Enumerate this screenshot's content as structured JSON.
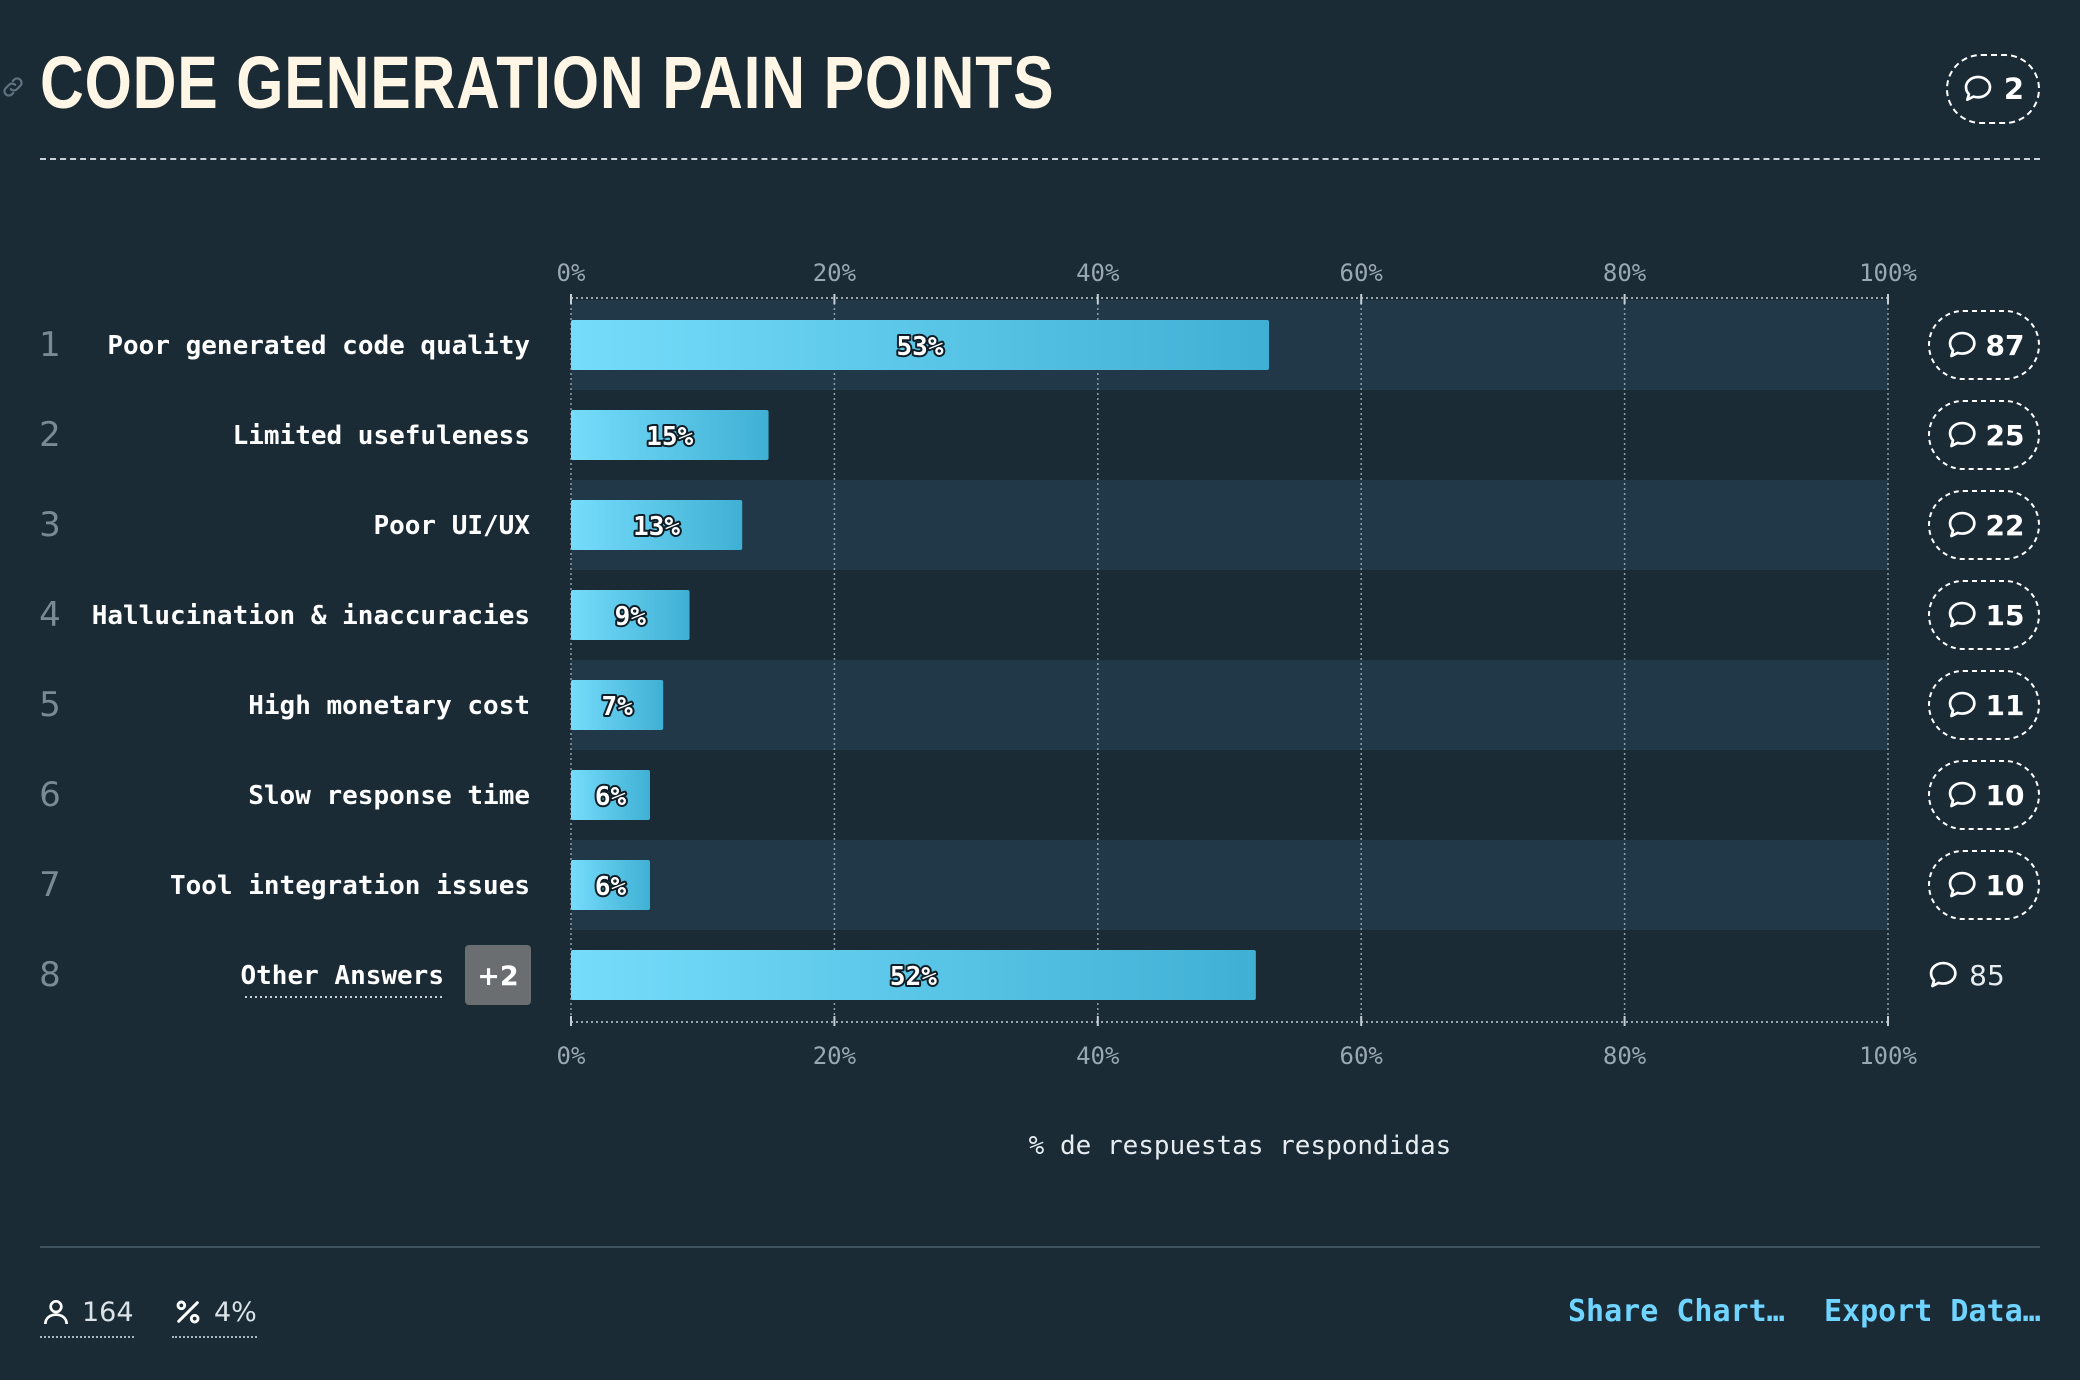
{
  "header": {
    "title": "CODE GENERATION PAIN POINTS",
    "comment_count": "2"
  },
  "chart_data": {
    "type": "bar",
    "orientation": "horizontal",
    "categories": [
      "Poor generated code quality",
      "Limited usefuleness",
      "Poor UI/UX",
      "Hallucination & inaccuracies",
      "High monetary cost",
      "Slow response time",
      "Tool integration issues",
      "Other Answers"
    ],
    "ranks": [
      "1",
      "2",
      "3",
      "4",
      "5",
      "6",
      "7",
      "8"
    ],
    "values": [
      53,
      15,
      13,
      9,
      7,
      6,
      6,
      52
    ],
    "value_labels": [
      "53%",
      "15%",
      "13%",
      "9%",
      "7%",
      "6%",
      "6%",
      "52%"
    ],
    "comment_counts": [
      "87",
      "25",
      "22",
      "15",
      "11",
      "10",
      "10",
      "85"
    ],
    "other_badge": "+2",
    "x_ticks": [
      "0%",
      "20%",
      "40%",
      "60%",
      "80%",
      "100%"
    ],
    "xlim": [
      0,
      100
    ],
    "xlabel": "% de respuestas respondidas",
    "grid": true
  },
  "footer": {
    "respondents": "164",
    "percent": "4%",
    "share_label": "Share Chart…",
    "export_label": "Export Data…"
  },
  "colors": {
    "background": "#1a2b36",
    "row_band": "#203847",
    "bar_start": "#76dcfb",
    "bar_end": "#3fb0d4",
    "accent": "#6fd4ff"
  },
  "icons": [
    "link-icon",
    "comment-icon",
    "user-icon",
    "percent-icon"
  ]
}
